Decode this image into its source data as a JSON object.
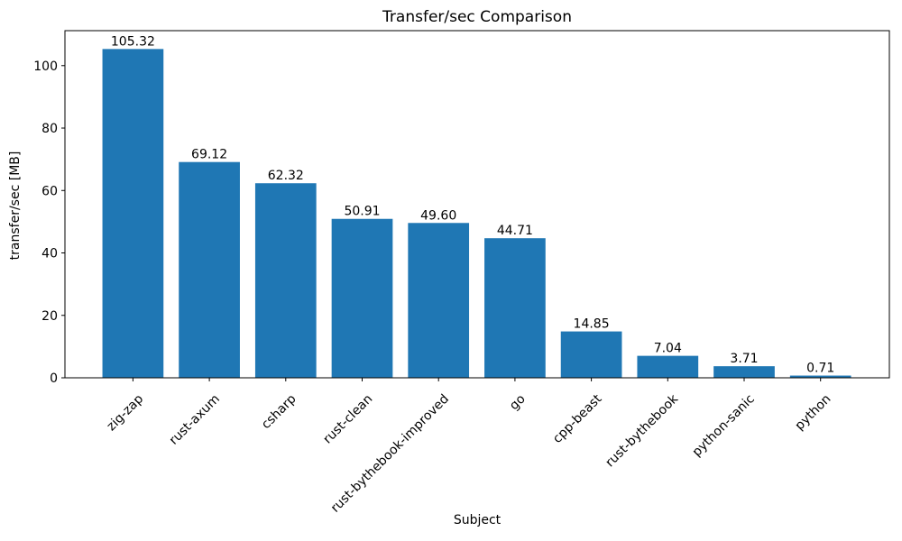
{
  "chart_data": {
    "type": "bar",
    "title": "Transfer/sec Comparison",
    "xlabel": "Subject",
    "ylabel": "transfer/sec [MB]",
    "categories": [
      "zig-zap",
      "rust-axum",
      "csharp",
      "rust-clean",
      "rust-bythebook-improved",
      "go",
      "cpp-beast",
      "rust-bythebook",
      "python-sanic",
      "python"
    ],
    "values": [
      105.32,
      69.12,
      62.32,
      50.91,
      49.6,
      44.71,
      14.85,
      7.04,
      3.71,
      0.71
    ],
    "bar_labels": [
      "105.32",
      "69.12",
      "62.32",
      "50.91",
      "49.60",
      "44.71",
      "14.85",
      "7.04",
      "3.71",
      "0.71"
    ],
    "yticks": [
      0,
      20,
      40,
      60,
      80,
      100
    ],
    "ytick_labels": [
      "0",
      "20",
      "40",
      "60",
      "80",
      "100"
    ],
    "ylim": [
      0,
      111.2
    ],
    "bar_color": "#1f77b4",
    "text_color": "#000000",
    "background_color": "#ffffff",
    "grid": false,
    "legend": null,
    "xtick_rotation_deg": 45
  }
}
